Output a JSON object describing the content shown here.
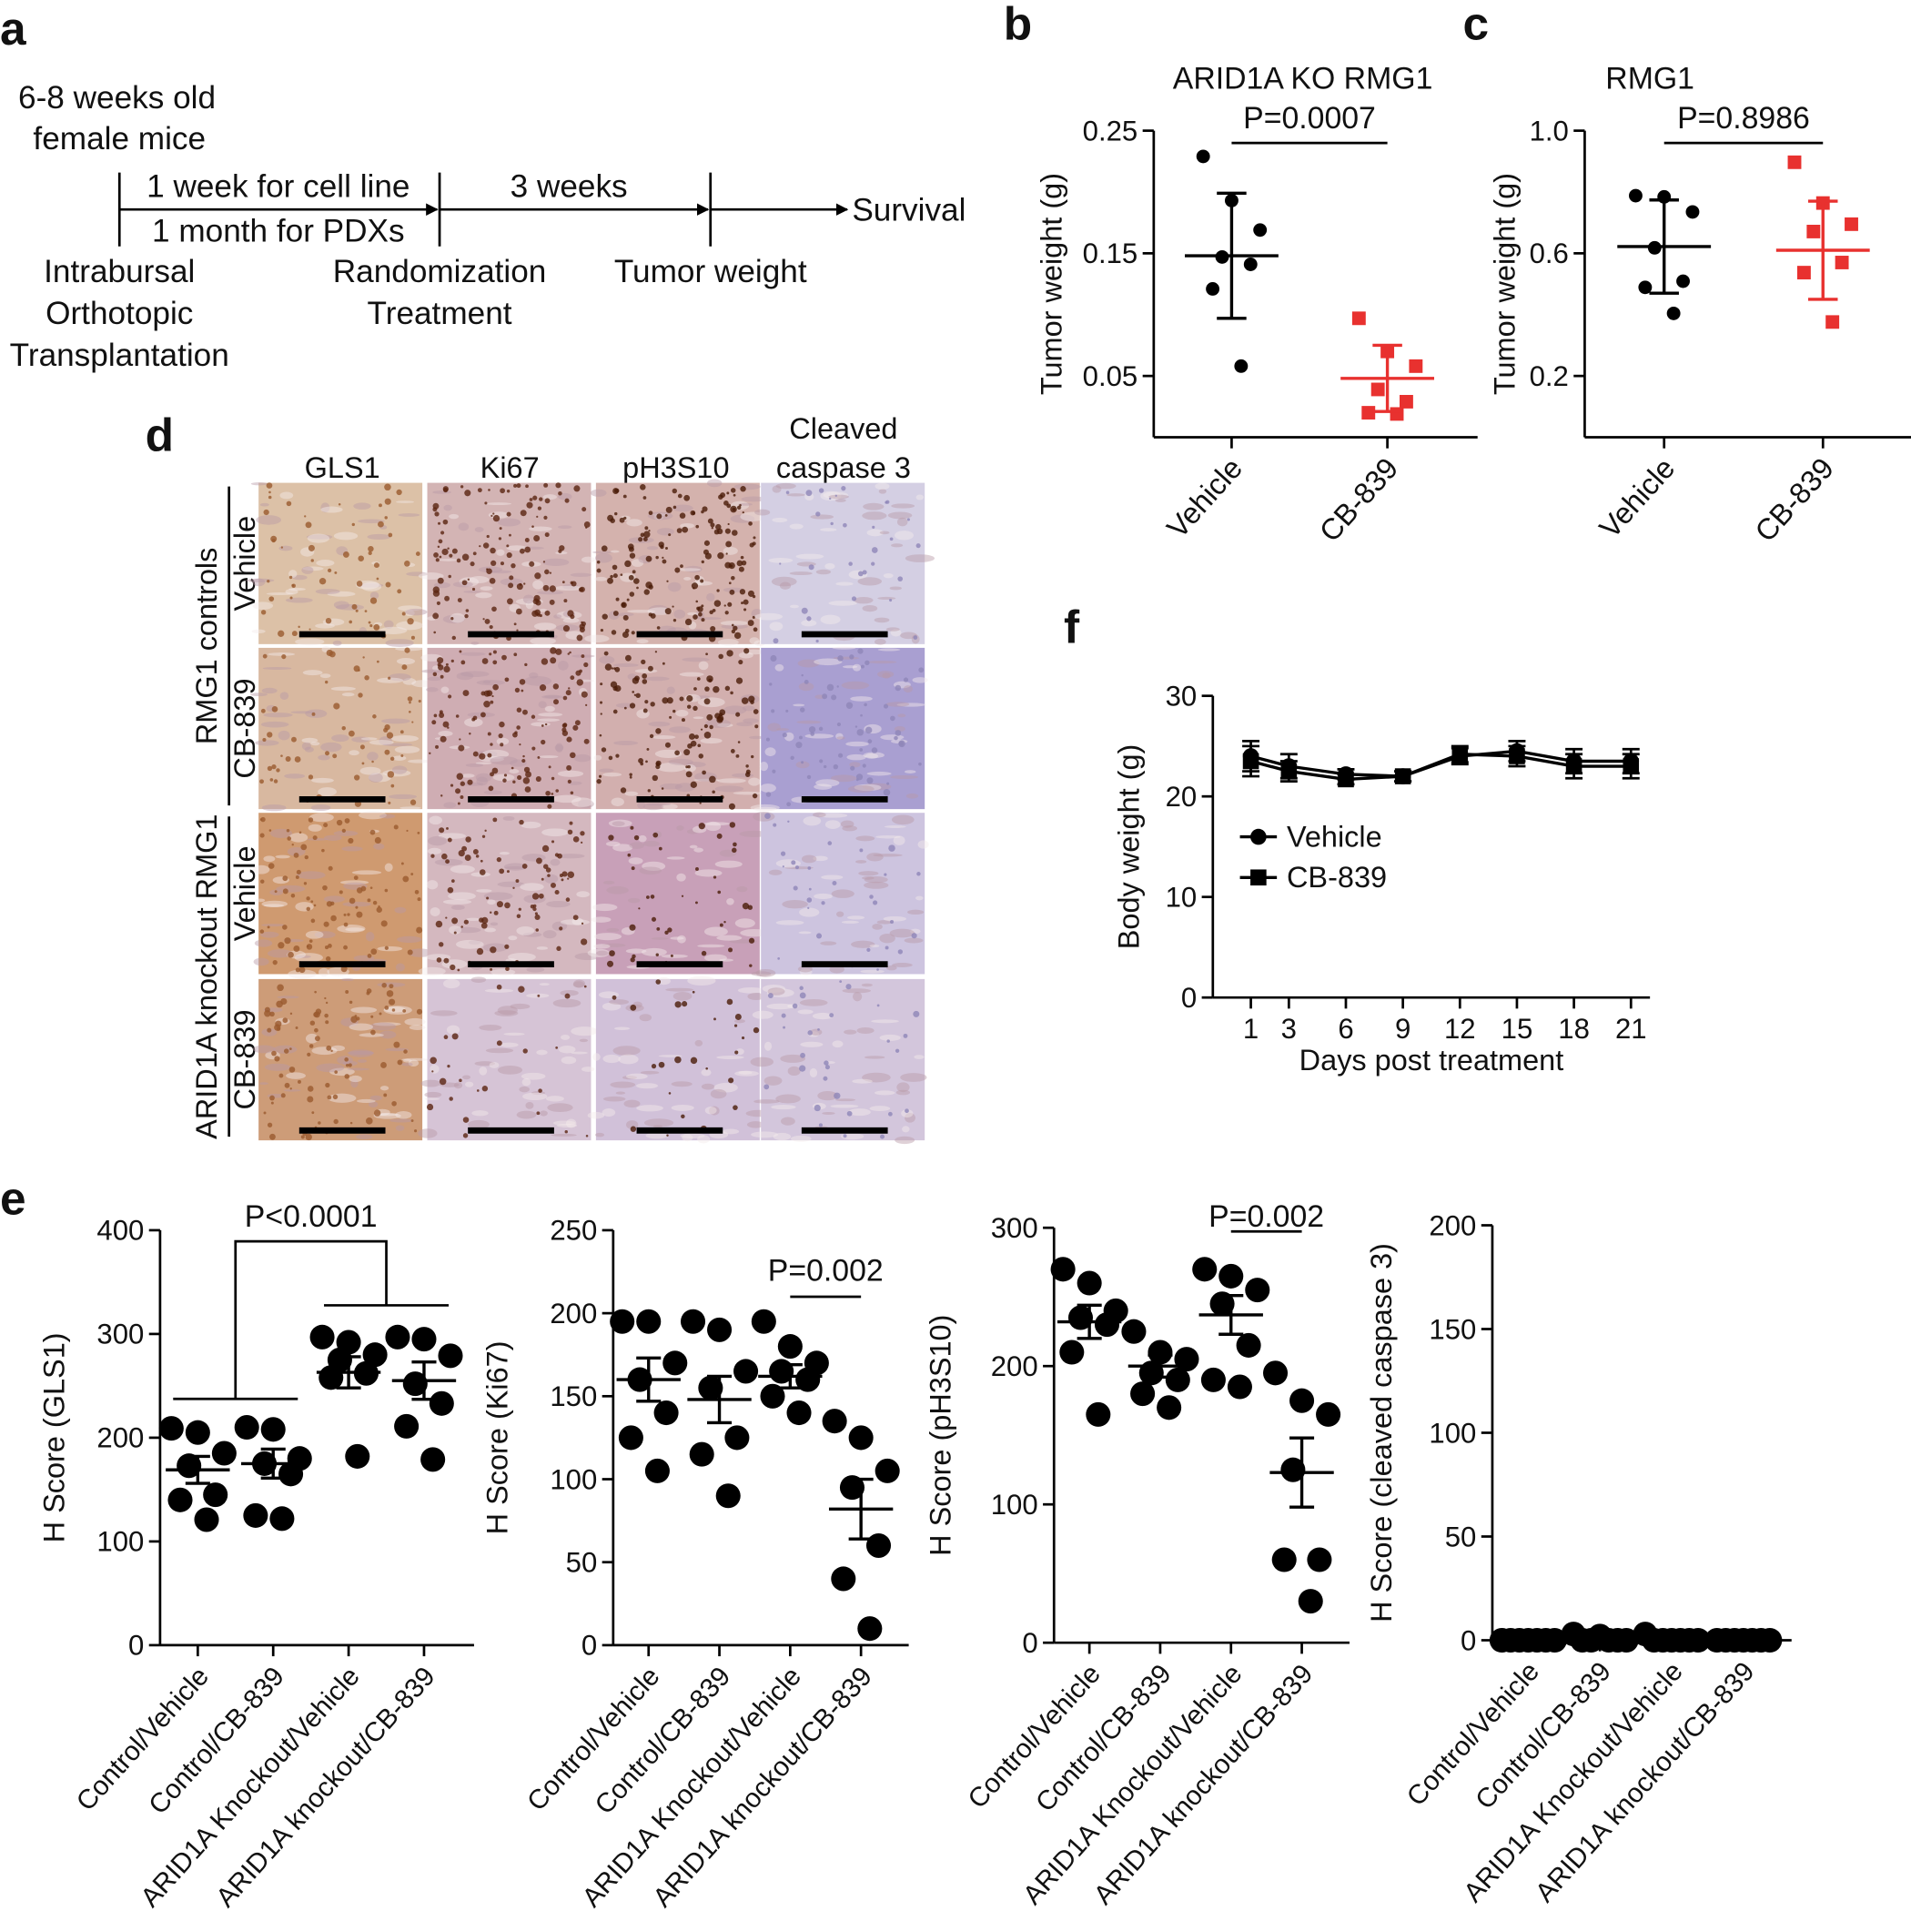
{
  "panel_labels": [
    "a",
    "b",
    "c",
    "d",
    "e",
    "f"
  ],
  "diagram": {
    "subject": [
      "6-8 weeks old",
      "female mice"
    ],
    "step1_top": "1 week for cell line",
    "step1_bottom": "1 month for PDXs",
    "step2_top": "3 weeks",
    "end": "Survival",
    "stage_labels": [
      [
        "Intrabursal",
        "Orthotopic",
        "Transplantation"
      ],
      [
        "Randomization",
        "Treatment"
      ],
      [
        "Tumor weight"
      ]
    ]
  },
  "micrographs": {
    "column_labels": [
      [
        "GLS1"
      ],
      [
        "Ki67"
      ],
      [
        "pH3S10"
      ],
      [
        "Cleaved",
        "caspase 3"
      ]
    ],
    "groups": [
      {
        "label": "RMG1 controls",
        "rows": [
          "Vehicle",
          "CB-839"
        ]
      },
      {
        "label": "ARID1A knockout RMG1",
        "rows": [
          "Vehicle",
          "CB-839"
        ]
      }
    ]
  },
  "chart_data": [
    {
      "type": "dot",
      "title": "ARID1A KO RMG1",
      "ylabel": "Tumor weight (g)",
      "categories": [
        "Vehicle",
        "CB-839"
      ],
      "colors": [
        "#000000",
        "#e8312f"
      ],
      "markers": [
        "circle",
        "square"
      ],
      "points": [
        [
          0.229,
          0.193,
          0.169,
          0.147,
          0.141,
          0.121,
          0.058
        ],
        [
          0.097,
          0.07,
          0.058,
          0.039,
          0.029,
          0.02,
          0.019
        ]
      ],
      "means": [
        0.148,
        0.048
      ],
      "errors": [
        0.051,
        0.027
      ],
      "ylim": [
        0,
        0.25
      ],
      "yticks": [
        0.05,
        0.15,
        0.25
      ],
      "annotation": "P=0.0007"
    },
    {
      "type": "dot",
      "title": "RMG1",
      "ylabel": "Tumor weight (g)",
      "categories": [
        "Vehicle",
        "CB-839"
      ],
      "colors": [
        "#000000",
        "#e8312f"
      ],
      "markers": [
        "circle",
        "square"
      ],
      "points": [
        [
          0.788,
          0.784,
          0.735,
          0.618,
          0.509,
          0.489,
          0.404
        ],
        [
          0.897,
          0.764,
          0.695,
          0.671,
          0.57,
          0.537,
          0.376
        ]
      ],
      "means": [
        0.622,
        0.61
      ],
      "errors": [
        0.152,
        0.16
      ],
      "ylim": [
        0,
        1
      ],
      "yticks": [
        0.2,
        0.6,
        {
          "value": 1,
          "label": "1.0"
        }
      ],
      "annotation": "P=0.8986"
    },
    {
      "type": "line",
      "xlabel": "Days post treatment",
      "ylabel": "Body weight (g)",
      "x": [
        1,
        3,
        6,
        9,
        12,
        15,
        18,
        21
      ],
      "series": [
        {
          "name": "Vehicle",
          "color": "#000000",
          "marker": "circle",
          "values": [
            24,
            23,
            22.2,
            22,
            24,
            24.5,
            23.5,
            23.5
          ],
          "errors": [
            1.5,
            1.2,
            0.5,
            0.5,
            0.8,
            1,
            1.2,
            1.2
          ]
        },
        {
          "name": "CB-839",
          "color": "#000000",
          "marker": "square",
          "values": [
            23.5,
            22.5,
            21.7,
            22,
            24.2,
            24,
            23,
            23
          ],
          "errors": [
            1.5,
            1,
            0.5,
            0.5,
            0.8,
            1,
            1.2,
            1.2
          ]
        }
      ],
      "xlim": [
        -1,
        22
      ],
      "xticks": [
        1,
        3,
        6,
        9,
        12,
        15,
        18,
        21
      ],
      "ylim": [
        0,
        30
      ],
      "yticks": [
        0,
        10,
        20,
        30
      ],
      "legend": "center-left"
    },
    {
      "type": "dot",
      "ylabel": "H Score (GLS1)",
      "categories": [
        "Control/Vehicle",
        "Control/CB-839",
        "ARID1A Knockout/Vehicle",
        "ARID1A knockout/CB-839"
      ],
      "colors": [
        "#000000",
        "#000000",
        "#000000",
        "#000000"
      ],
      "markers": [
        "circle",
        "circle",
        "circle",
        "circle"
      ],
      "points": [
        [
          209,
          205,
          185,
          173,
          145,
          140,
          121
        ],
        [
          210,
          208,
          180,
          175,
          165,
          125,
          122
        ],
        [
          297,
          292,
          280,
          275,
          262,
          258,
          182
        ],
        [
          297,
          295,
          279,
          252,
          233,
          211,
          179
        ]
      ],
      "means": [
        169,
        175,
        263,
        255
      ],
      "errors": [
        13,
        14,
        15,
        18
      ],
      "ylim": [
        0,
        400
      ],
      "yticks": [
        0,
        100,
        200,
        300,
        400
      ],
      "annotation": "P<0.0001"
    },
    {
      "type": "dot",
      "ylabel": "H Score (Ki67)",
      "categories": [
        "Control/Vehicle",
        "Control/CB-839",
        "ARID1A Knockout/Vehicle",
        "ARID1A knockout/CB-839"
      ],
      "colors": [
        "#000000",
        "#000000",
        "#000000",
        "#000000"
      ],
      "markers": [
        "circle",
        "circle",
        "circle",
        "circle"
      ],
      "points": [
        [
          195,
          195,
          170,
          160,
          140,
          125,
          105
        ],
        [
          195,
          190,
          165,
          155,
          125,
          115,
          90
        ],
        [
          195,
          180,
          170,
          165,
          160,
          150,
          140
        ],
        [
          135,
          125,
          105,
          95,
          60,
          40,
          10
        ]
      ],
      "means": [
        160,
        148,
        162,
        82
      ],
      "errors": [
        13,
        14,
        7,
        18
      ],
      "ylim": [
        0,
        250
      ],
      "yticks": [
        0,
        50,
        100,
        150,
        200,
        250
      ],
      "annotation": "P=0.002"
    },
    {
      "type": "dot",
      "ylabel": "H Score (pH3S10)",
      "categories": [
        "Control/Vehicle",
        "Control/CB-839",
        "ARID1A Knockout/Vehicle",
        "ARID1A knockout/CB-839"
      ],
      "colors": [
        "#000000",
        "#000000",
        "#000000",
        "#000000"
      ],
      "markers": [
        "circle",
        "circle",
        "circle",
        "circle"
      ],
      "points": [
        [
          270,
          260,
          240,
          235,
          230,
          210,
          165
        ],
        [
          225,
          210,
          205,
          195,
          190,
          180,
          170
        ],
        [
          270,
          265,
          255,
          245,
          215,
          190,
          185
        ],
        [
          195,
          175,
          165,
          125,
          60,
          60,
          30
        ]
      ],
      "means": [
        232,
        200,
        237,
        123
      ],
      "errors": [
        12,
        8,
        14,
        25
      ],
      "ylim": [
        0,
        300
      ],
      "yticks": [
        0,
        100,
        200,
        300
      ],
      "annotation": "P=0.002"
    },
    {
      "type": "dot",
      "ylabel": "H Score (cleaved caspase 3)",
      "categories": [
        "Control/Vehicle",
        "Control/CB-839",
        "ARID1A Knockout/Vehicle",
        "ARID1A knockout/CB-839"
      ],
      "colors": [
        "#000000",
        "#000000",
        "#000000",
        "#000000"
      ],
      "markers": [
        "circle",
        "circle",
        "circle",
        "circle"
      ],
      "points": [
        [
          0,
          0,
          0,
          0,
          0,
          0,
          0
        ],
        [
          3,
          2,
          0,
          0,
          0,
          0,
          0
        ],
        [
          3,
          0,
          0,
          0,
          0,
          0,
          0
        ],
        [
          0,
          0,
          0,
          0,
          0,
          0,
          0
        ]
      ],
      "means": [
        0,
        0.7,
        0.4,
        0
      ],
      "errors": [
        0,
        0.5,
        0.4,
        0
      ],
      "ylim": [
        0,
        200
      ],
      "yticks": [
        0,
        50,
        100,
        150,
        200
      ]
    }
  ]
}
